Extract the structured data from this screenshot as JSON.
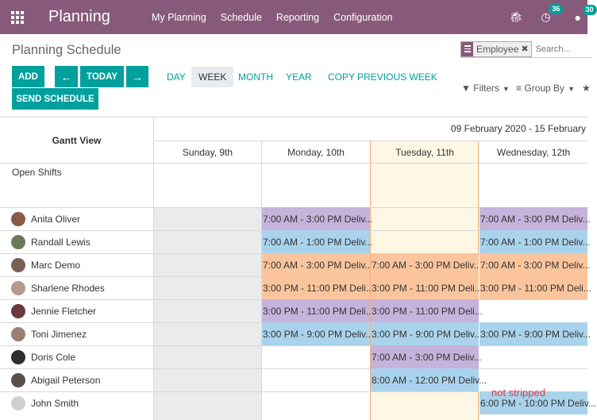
{
  "navbar": {
    "brand": "Planning",
    "menu": [
      "My Planning",
      "Schedule",
      "Reporting",
      "Configuration"
    ],
    "activity_count": "36",
    "messages_count": "30"
  },
  "control_panel": {
    "title": "Planning Schedule",
    "facet": "Employee",
    "search_placeholder": "Search...",
    "add_label": "ADD",
    "today_label": "TODAY",
    "send_label": "SEND SCHEDULE",
    "views": [
      "DAY",
      "WEEK",
      "MONTH",
      "YEAR"
    ],
    "active_view": "WEEK",
    "copy_label": "COPY PREVIOUS WEEK",
    "filters_label": "Filters",
    "groupby_label": "Group By"
  },
  "gantt": {
    "title": "Gantt View",
    "range": "09 February 2020 - 15 February",
    "days": [
      "Sunday, 9th",
      "Monday, 10th",
      "Tuesday, 11th",
      "Wednesday, 12th"
    ],
    "open_shifts_label": "Open Shifts",
    "employees": [
      {
        "name": "Anita Oliver",
        "avatar_color": "#8a5a48"
      },
      {
        "name": "Randall Lewis",
        "avatar_color": "#6d7a5a"
      },
      {
        "name": "Marc Demo",
        "avatar_color": "#7a5f52"
      },
      {
        "name": "Sharlene Rhodes",
        "avatar_color": "#b79a8e"
      },
      {
        "name": "Jennie Fletcher",
        "avatar_color": "#6a3b3b"
      },
      {
        "name": "Toni Jimenez",
        "avatar_color": "#9a7f73"
      },
      {
        "name": "Doris Cole",
        "avatar_color": "#2f2f2f"
      },
      {
        "name": "Abigail Peterson",
        "avatar_color": "#5a4f4a"
      },
      {
        "name": "John Smith",
        "avatar_color": "#d0d0d0"
      }
    ],
    "shifts": [
      {
        "row": 0,
        "day": 1,
        "text": "7:00 AM - 3:00 PM Deliv...",
        "color": "#c5b3db"
      },
      {
        "row": 0,
        "day": 3,
        "text": "7:00 AM - 3:00 PM Deliv...",
        "color": "#c5b3db"
      },
      {
        "row": 1,
        "day": 1,
        "text": "7:00 AM - 1:00 PM Deliv...",
        "color": "#a9d3ec"
      },
      {
        "row": 1,
        "day": 3,
        "text": "7:00 AM - 1:00 PM Deliv...",
        "color": "#a9d3ec"
      },
      {
        "row": 2,
        "day": 1,
        "text": "7:00 AM - 3:00 PM Deliv...",
        "color": "#fac59d"
      },
      {
        "row": 2,
        "day": 2,
        "text": "7:00 AM - 3:00 PM Deliv...",
        "color": "#fac59d"
      },
      {
        "row": 2,
        "day": 3,
        "text": "7:00 AM - 3:00 PM Deliv...",
        "color": "#fac59d"
      },
      {
        "row": 3,
        "day": 1,
        "text": "3:00 PM - 11:00 PM Deli...",
        "color": "#fac59d"
      },
      {
        "row": 3,
        "day": 2,
        "text": "3:00 PM - 11:00 PM Deli...",
        "color": "#fac59d"
      },
      {
        "row": 3,
        "day": 3,
        "text": "3:00 PM - 11:00 PM Deli...",
        "color": "#fac59d"
      },
      {
        "row": 4,
        "day": 1,
        "text": "3:00 PM - 11:00 PM Deli...",
        "color": "#c5b3db"
      },
      {
        "row": 4,
        "day": 2,
        "text": "3:00 PM - 11:00 PM Deli...",
        "color": "#c5b3db"
      },
      {
        "row": 5,
        "day": 1,
        "text": "3:00 PM - 9:00 PM Deliv...",
        "color": "#a9d3ec"
      },
      {
        "row": 5,
        "day": 2,
        "text": "3:00 PM - 9:00 PM Deliv...",
        "color": "#a9d3ec"
      },
      {
        "row": 5,
        "day": 3,
        "text": "3:00 PM - 9:00 PM Deliv...",
        "color": "#a9d3ec"
      },
      {
        "row": 6,
        "day": 2,
        "text": "7:00 AM - 3:00 PM Deliv...",
        "color": "#c5b3db"
      },
      {
        "row": 7,
        "day": 2,
        "text": "8:00 AM - 12:00 PM Deliv...",
        "color": "#a9d3ec"
      },
      {
        "row": 8,
        "day": 3,
        "text": "6:00 PM - 10:00 PM Deliv...",
        "color": "#a9d3ec"
      }
    ]
  },
  "annotation": "not stripped"
}
